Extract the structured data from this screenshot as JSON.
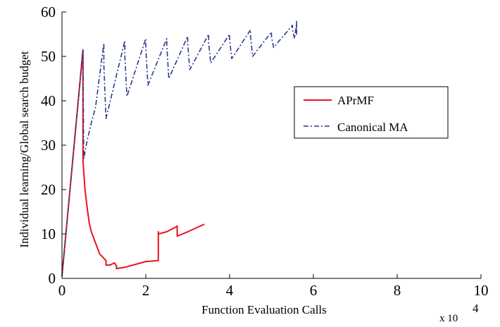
{
  "chart_data": {
    "type": "line",
    "xlabel": "Function Evaluation Calls",
    "ylabel": "Individual learning/Global search budget",
    "x_multiplier": "x 10",
    "x_multiplier_exponent": "4",
    "xlim": [
      0,
      10
    ],
    "ylim": [
      0,
      60
    ],
    "x_ticks": [
      "0",
      "2",
      "4",
      "6",
      "8",
      "10"
    ],
    "y_ticks": [
      "0",
      "10",
      "20",
      "30",
      "40",
      "50",
      "60"
    ],
    "legend_position": "right",
    "grid": false,
    "series": [
      {
        "name": "APrMF",
        "color": "#e8141b",
        "style": "solid",
        "x": [
          0.0,
          0.5,
          0.5,
          0.52,
          0.55,
          0.6,
          0.65,
          0.7,
          0.8,
          0.9,
          1.0,
          1.05,
          1.05,
          1.15,
          1.25,
          1.3,
          1.3,
          1.5,
          2.0,
          2.3,
          2.3,
          2.3,
          2.5,
          2.7,
          2.75,
          2.75,
          3.0,
          3.4
        ],
        "y": [
          0.5,
          51.5,
          26.5,
          24.0,
          20.0,
          16.0,
          12.5,
          10.5,
          8.0,
          5.5,
          4.5,
          4.0,
          3.0,
          3.0,
          3.5,
          2.8,
          2.2,
          2.5,
          3.8,
          4.0,
          10.5,
          10.0,
          10.5,
          11.5,
          11.8,
          9.5,
          10.5,
          12.2
        ]
      },
      {
        "name": "Canonical MA",
        "color": "#2b3a8f",
        "style": "dashdot",
        "x": [
          0.0,
          0.5,
          0.52,
          0.6,
          0.7,
          0.8,
          1.0,
          1.0,
          1.05,
          1.5,
          1.5,
          1.55,
          2.0,
          2.0,
          2.05,
          2.5,
          2.5,
          2.55,
          3.0,
          3.0,
          3.05,
          3.5,
          3.5,
          3.55,
          4.0,
          4.0,
          4.05,
          4.5,
          4.5,
          4.55,
          5.0,
          5.0,
          5.05,
          5.5,
          5.5,
          5.55,
          5.6,
          5.6,
          5.6
        ],
        "y": [
          0.5,
          51.5,
          27.0,
          31.0,
          35.0,
          38.5,
          53.0,
          48.0,
          36.0,
          53.5,
          50.0,
          41.0,
          54.0,
          52.0,
          43.5,
          54.0,
          52.5,
          45.0,
          54.5,
          53.0,
          47.0,
          55.0,
          53.0,
          48.5,
          55.0,
          54.0,
          49.5,
          56.0,
          54.5,
          50.0,
          55.5,
          54.5,
          52.0,
          57.0,
          56.0,
          54.0,
          57.5,
          55.0,
          58.0
        ]
      }
    ]
  }
}
